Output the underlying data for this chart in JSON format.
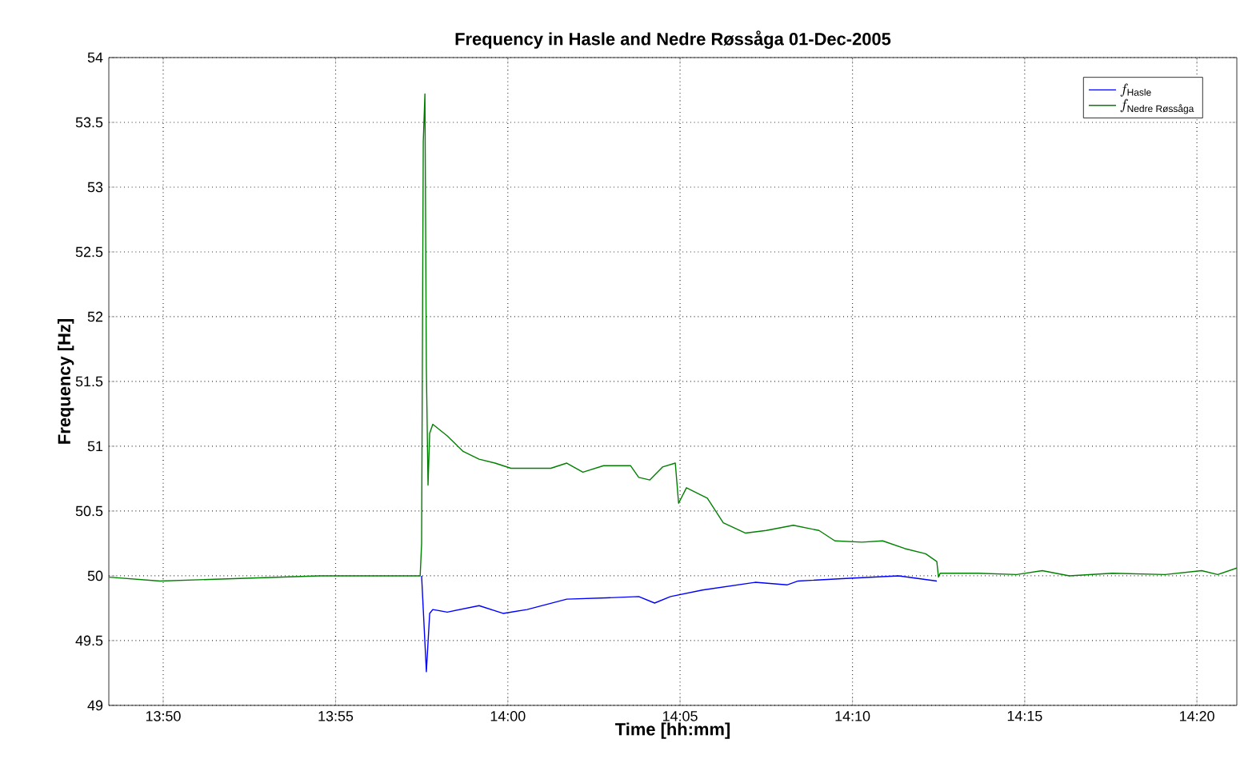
{
  "chart_data": {
    "type": "line",
    "title": "Frequency in Hasle and Nedre Røssåga 01-Dec-2005",
    "xlabel": "Time [hh:mm]",
    "ylabel": "Frequency [Hz]",
    "xlim": [
      13.807,
      14.3526
    ],
    "ylim": [
      49,
      54
    ],
    "xticks": [
      {
        "value": 13.8333,
        "label": "13:50"
      },
      {
        "value": 13.9167,
        "label": "13:55"
      },
      {
        "value": 14,
        "label": "14:00"
      },
      {
        "value": 14.0833,
        "label": "14:05"
      },
      {
        "value": 14.1667,
        "label": "14:10"
      },
      {
        "value": 14.25,
        "label": "14:15"
      },
      {
        "value": 14.3333,
        "label": "14:20"
      }
    ],
    "yticks": [
      49,
      49.5,
      50,
      50.5,
      51,
      51.5,
      52,
      52.5,
      53,
      53.5,
      54
    ],
    "grid": true,
    "legend": "top right",
    "line_style": "solid",
    "marker": "none",
    "series": [
      {
        "name": "f_{\\text{Hasle}}",
        "color": "#0000ff",
        "x": [
          13.9583,
          13.9591,
          13.9606,
          13.9622,
          13.9637,
          13.9707,
          13.9861,
          13.9977,
          14.0093,
          14.0285,
          14.0478,
          14.0633,
          14.071,
          14.0787,
          14.0941,
          14.1196,
          14.135,
          14.1404,
          14.1636,
          14.189,
          14.2075
        ],
        "values": [
          50.0,
          49.74,
          49.26,
          49.71,
          49.74,
          49.72,
          49.77,
          49.71,
          49.74,
          49.82,
          49.83,
          49.84,
          49.79,
          49.84,
          49.89,
          49.95,
          49.93,
          49.96,
          49.98,
          50.0,
          49.96
        ]
      },
      {
        "name": "f_{\\text{Nedre Røssåga}}",
        "color": "#008000",
        "x": [
          13.8071,
          13.8318,
          13.8704,
          13.909,
          13.9321,
          13.9576,
          13.9583,
          13.9591,
          13.9599,
          13.9606,
          13.9614,
          13.9622,
          13.9637,
          13.9707,
          13.9784,
          13.9861,
          13.9938,
          14.0015,
          14.0208,
          14.0285,
          14.0363,
          14.0463,
          14.0594,
          14.0633,
          14.0687,
          14.0748,
          14.081,
          14.0826,
          14.0864,
          14.0965,
          14.1042,
          14.115,
          14.125,
          14.1381,
          14.1505,
          14.1582,
          14.1713,
          14.1813,
          14.1921,
          14.2021,
          14.2075,
          14.2083,
          14.2091,
          14.2276,
          14.2461,
          14.2585,
          14.2716,
          14.2924,
          14.3179,
          14.3356,
          14.3434,
          14.3526
        ],
        "values": [
          49.99,
          49.96,
          49.98,
          50.0,
          50.0,
          50.0,
          50.25,
          53.35,
          53.72,
          51.6,
          50.7,
          51.1,
          51.17,
          51.08,
          50.96,
          50.9,
          50.87,
          50.83,
          50.83,
          50.87,
          50.8,
          50.85,
          50.85,
          50.76,
          50.74,
          50.84,
          50.87,
          50.56,
          50.68,
          50.6,
          50.41,
          50.33,
          50.35,
          50.39,
          50.35,
          50.27,
          50.26,
          50.27,
          50.21,
          50.17,
          50.11,
          49.99,
          50.02,
          50.02,
          50.01,
          50.04,
          50.0,
          50.02,
          50.01,
          50.04,
          50.01,
          50.06
        ]
      }
    ]
  }
}
